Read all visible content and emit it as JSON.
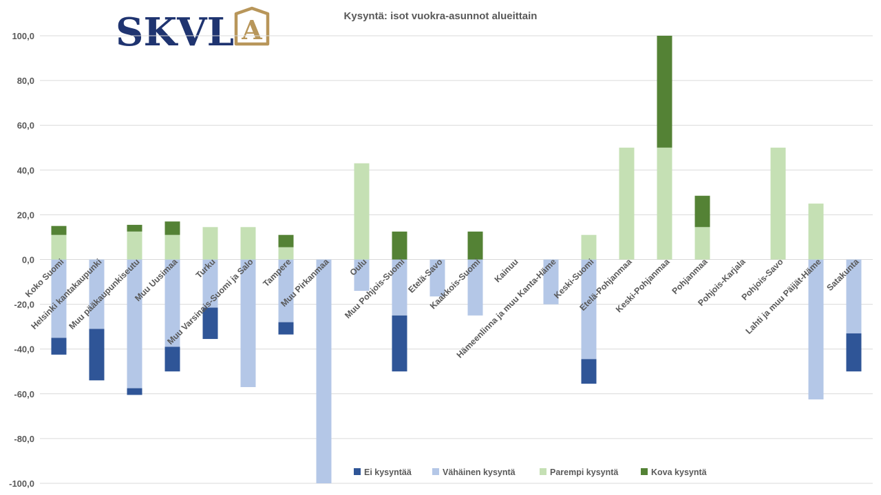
{
  "logo": {
    "text": "SKVL",
    "letter": "A",
    "text_color": "#1f3470",
    "accent_color": "#b8965a"
  },
  "chart_data": {
    "type": "bar",
    "stacked": true,
    "title": "Kysyntä: isot vuokra-asunnot alueittain",
    "ylim": [
      -100,
      100
    ],
    "yticks": [
      -100,
      -80,
      -60,
      -40,
      -20,
      0,
      20,
      40,
      60,
      80,
      100
    ],
    "ytick_labels": [
      "-100,0",
      "-80,0",
      "-60,0",
      "-40,0",
      "-20,0",
      "0,0",
      "20,0",
      "40,0",
      "60,0",
      "80,0",
      "100,0"
    ],
    "grid": true,
    "legend_position": "bottom",
    "categories": [
      "Koko Suomi",
      "Helsinki kantakaupunki",
      "Muu pääkaupunkiseutu",
      "Muu Uusimaa",
      "Turku",
      "Muu Varsinais-Suomi ja Salo",
      "Tampere",
      "Muu Pirkanmaa",
      "Oulu",
      "Muu Pohjois-Suomi",
      "Etelä-Savo",
      "Kaakkois-Suomi",
      "Kainuu",
      "Hämeenlinna ja muu Kanta-Häme",
      "Keski-Suomi",
      "Etelä-Pohjanmaa",
      "Keski-Pohjanmaa",
      "Pohjanmaa",
      "Pohjois-Karjala",
      "Pohjois-Savo",
      "Lahti ja muu Päijät-Häme",
      "Satakunta"
    ],
    "series": [
      {
        "name": "Ei kysyntää",
        "color": "#2f5597",
        "values": [
          -7.5,
          -23,
          -3,
          -11,
          -14,
          0,
          -5.5,
          0,
          0,
          -25,
          0,
          0,
          0,
          0,
          -11,
          0,
          0,
          0,
          0,
          0,
          0,
          -17
        ]
      },
      {
        "name": "Vähäinen kysyntä",
        "color": "#b4c7e7",
        "values": [
          -35,
          -31,
          -57.5,
          -39,
          -21.5,
          -57,
          -28,
          -100,
          -14,
          -25,
          -16.5,
          -25,
          0,
          -20,
          -44.5,
          0,
          0,
          0,
          0,
          0,
          -62.5,
          -33
        ]
      },
      {
        "name": "Parempi kysyntä",
        "color": "#c5e0b4",
        "values": [
          11,
          0,
          12.5,
          11,
          14.5,
          14.5,
          5.5,
          0,
          43,
          0,
          0,
          0,
          0,
          0,
          11,
          50,
          50,
          14.5,
          0,
          50,
          25,
          0
        ]
      },
      {
        "name": "Kova kysyntä",
        "color": "#548235",
        "values": [
          4,
          0,
          3,
          6,
          0,
          0,
          5.5,
          0,
          0,
          12.5,
          0,
          12.5,
          0,
          0,
          0,
          0,
          50,
          14,
          0,
          0,
          0,
          0
        ]
      }
    ]
  }
}
